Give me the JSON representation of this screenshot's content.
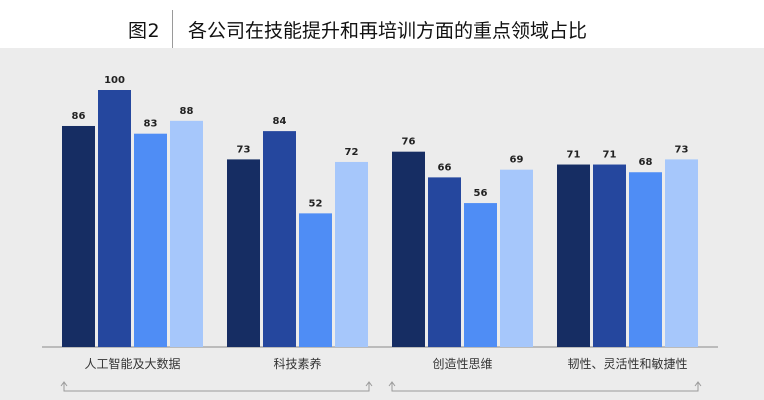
{
  "figure": {
    "label": "图2",
    "title": "各公司在技能提升和再培训方面的重点领域占比"
  },
  "colors": [
    "#162d63",
    "#25479e",
    "#4f8df5",
    "#a6c7fb"
  ],
  "chart_data": {
    "type": "bar",
    "title": "各公司在技能提升和再培训方面的重点领域占比",
    "categories": [
      "人工智能及大数据",
      "科技素养",
      "创造性思维",
      "韧性、灵活性和敏捷性"
    ],
    "series": [
      {
        "values": [
          86,
          73,
          76,
          71
        ]
      },
      {
        "values": [
          100,
          84,
          66,
          71
        ]
      },
      {
        "values": [
          83,
          52,
          56,
          68
        ]
      },
      {
        "values": [
          88,
          72,
          69,
          73
        ]
      }
    ],
    "ylim": [
      0,
      100
    ],
    "grid": false,
    "legend": "none"
  }
}
